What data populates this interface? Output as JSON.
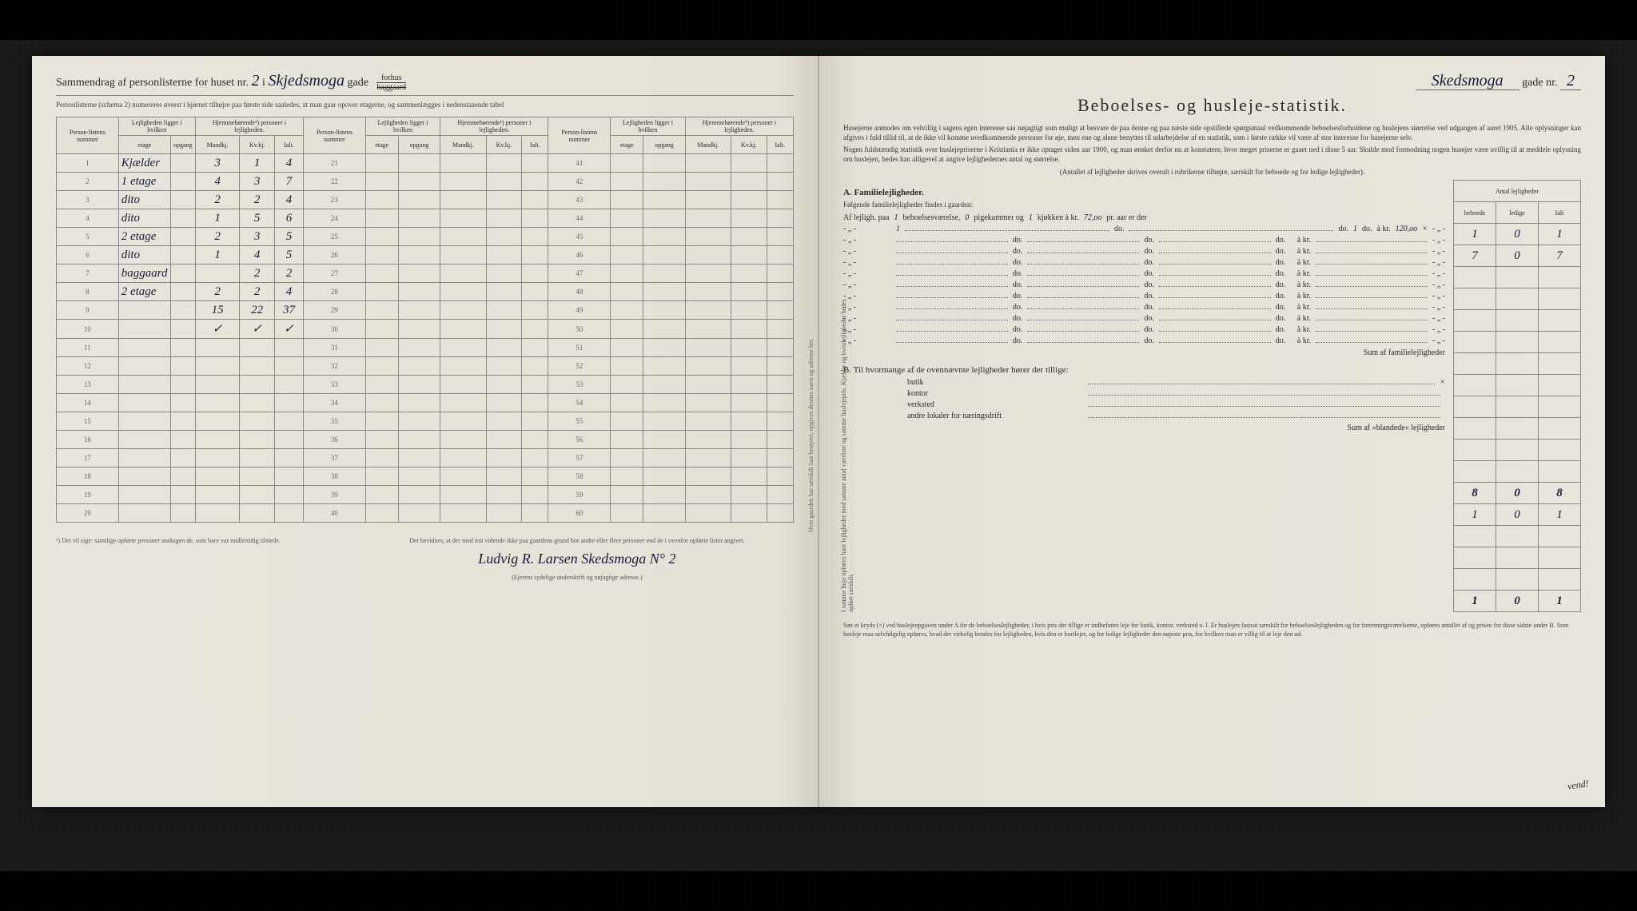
{
  "left_page": {
    "title_prefix": "Sammendrag af personlisterne for huset nr.",
    "house_nr": "2",
    "in_word": "i",
    "street_handwritten": "Skjedsmoga",
    "gade_label": "gade",
    "forhus": "forhus",
    "baggaard": "baggaard",
    "subtitle": "Personlisterne (schema 2) numereres øverst i hjørnet tilhøjre paa første side saaledes, at man gaar opover etagerne, og sammenlægges i nedenstaaende tabel",
    "columns": {
      "personlistens_nummer": "Person-listens nummer",
      "lejlighed_ligger": "Lejligheden ligger i hvilken",
      "etage": "etage",
      "opgang": "opgang",
      "hjemmehor": "Hjemmehørende¹) personer i lejligheden.",
      "mandkj": "Mandkj.",
      "kvkj": "Kv.kj.",
      "ialt": "Ialt."
    },
    "rows": [
      {
        "n": "1",
        "etage": "Kjælder",
        "opg": "",
        "m": "3",
        "k": "1",
        "i": "4"
      },
      {
        "n": "2",
        "etage": "1 etage",
        "opg": "",
        "m": "4",
        "k": "3",
        "i": "7"
      },
      {
        "n": "3",
        "etage": "dito",
        "opg": "",
        "m": "2",
        "k": "2",
        "i": "4"
      },
      {
        "n": "4",
        "etage": "dito",
        "opg": "",
        "m": "1",
        "k": "5",
        "i": "6"
      },
      {
        "n": "5",
        "etage": "2 etage",
        "opg": "",
        "m": "2",
        "k": "3",
        "i": "5"
      },
      {
        "n": "6",
        "etage": "dito",
        "opg": "",
        "m": "1",
        "k": "4",
        "i": "5"
      },
      {
        "n": "7",
        "etage": "baggaard",
        "opg": "",
        "m": "",
        "k": "2",
        "i": "2"
      },
      {
        "n": "8",
        "etage": "2 etage",
        "opg": "",
        "m": "2",
        "k": "2",
        "i": "4"
      },
      {
        "n": "9",
        "etage": "",
        "opg": "",
        "m": "15",
        "k": "22",
        "i": "37"
      },
      {
        "n": "10",
        "etage": "",
        "opg": "",
        "m": "✓",
        "k": "✓",
        "i": "✓"
      }
    ],
    "empty_rows_1": [
      "11",
      "12",
      "13",
      "14",
      "15",
      "16",
      "17",
      "18",
      "19",
      "20"
    ],
    "mid_rows": [
      "21",
      "22",
      "23",
      "24",
      "25",
      "26",
      "27",
      "28",
      "29",
      "30",
      "31",
      "32",
      "33",
      "34",
      "35",
      "36",
      "37",
      "38",
      "39",
      "40"
    ],
    "right_rows": [
      "41",
      "42",
      "43",
      "44",
      "45",
      "46",
      "47",
      "48",
      "49",
      "50",
      "51",
      "52",
      "53",
      "54",
      "55",
      "56",
      "57",
      "58",
      "59",
      "60"
    ],
    "footnote1": "¹) Det vil sige: samtlige opførte personer undtagen de, som bare var midlertidig tilstede.",
    "attest": "Det bevidnes, at der med mit vidende ikke paa gaardens grund bor andre eller flere personer end de i ovenfor opførte lister angivet.",
    "signature": "Ludvig R. Larsen  Skedsmoga N° 2",
    "sig_caption": "(Ejerens tydelige underskrift og nøjagtige adresse.)",
    "vertical_note": "Hvis gaarden har særskilt fast bestyrer, opgives dennes navn og adresse her."
  },
  "right_page": {
    "header_hw": "Skedsmoga",
    "header_gade": "gade nr.",
    "header_nr": "2",
    "title": "Beboelses- og husleje-statistik.",
    "intro1": "Husejerne anmodes om velvillig i sagens egen interesse saa nøjagtigt som muligt at besvare de paa denne og paa næste side opstillede spørgsmaal vedkommende beboelsesforholdene og huslejens størrelse ved udgangen af aaret 1905. Alle oplysninger kan afgives i fuld tillid til, at de ikke vil komme uvedkommende personer for øje, men ene og alene benyttes til udarbejdelse af en statistik, som i første række vil være af stor interesse for husejerne selv.",
    "intro2": "Nogen fuldstændig statistik over huslejepriserne i Kristiania er ikke optaget siden aar 1900, og man ønsket derfor nu at konstatere, hvor meget priserne er gaaet ned i disse 5 aar. Skulde mod formodning nogen husejer være uvillig til at meddele oplysning om huslejen, bedes han alligevel at angive lejlighedernes antal og størrelse.",
    "intro3": "(Antallet af lejligheder skrives overalt i rubrikerne tilhøjre, særskilt for beboede og for ledige lejligheder).",
    "antal_header": "Antal lejligheder",
    "antal_cols": {
      "beboede": "beboede",
      "ledige": "ledige",
      "ialt": "Ialt"
    },
    "sectionA": "A.  Familielejligheder.",
    "A_lead": "Følgende familielejligheder findes i gaarden:",
    "A_line1": {
      "pre": "Af lejligh. paa",
      "rooms": "1",
      "mid": "beboelsesværelse,",
      "pige": "0",
      "mid2": "pigekammer og",
      "kj": "1",
      "mid3": "kjøkken à kr.",
      "price": "72,oo",
      "suffix": "pr. aar er der"
    },
    "A_line2": {
      "rooms": "1",
      "kj": "1",
      "price": "120,oo",
      "mark": "×"
    },
    "A_table": [
      {
        "b": "1",
        "l": "0",
        "i": "1"
      },
      {
        "b": "7",
        "l": "0",
        "i": "7"
      }
    ],
    "A_empty_count": 10,
    "A_sum_label": "Sum af familielejligheder",
    "A_sum": {
      "b": "8",
      "l": "0",
      "i": "8"
    },
    "sectionB": "B.  Til hvormange af de ovennævnte lejligheder hører der tillige:",
    "B_rows": [
      {
        "label": "butik",
        "mark": "×",
        "b": "1",
        "l": "0",
        "i": "1"
      },
      {
        "label": "kontor",
        "mark": "",
        "b": "",
        "l": "",
        "i": ""
      },
      {
        "label": "verksted",
        "mark": "",
        "b": "",
        "l": "",
        "i": ""
      },
      {
        "label": "andre lokaler for næringsdrift",
        "mark": "",
        "b": "",
        "l": "",
        "i": ""
      }
    ],
    "B_sum_label": "Sum af »blandede« lejligheder",
    "B_sum": {
      "b": "1",
      "l": "0",
      "i": "1"
    },
    "bottom": "Sæt et kryds (×) ved huslejeopgaven under A for de beboelseslejligheder, i hvis pris der tillige er indbefattet leje for butik, kontor, verksted o. l. Er huslejen fastsat særskilt for beboelseslejligheden og for forretningsværelserne, opføres antallet af og prisen for disse sidste under B. Som husleje maa selvfølgelig opføres, hvad der virkelig betales for lejligheden, hvis den er bortlejet, og for ledige lejligheder den nøjeste pris, for hvilken man er villig til at leje den ud.",
    "vend": "vend!",
    "do": "do.",
    "akr": "à kr.",
    "side_brace": "I samme linje opføres bare lejligheder med samme antal værelser og samme huslejepris. Kjælder og kvistlejligheder bedes opført særskilt."
  }
}
